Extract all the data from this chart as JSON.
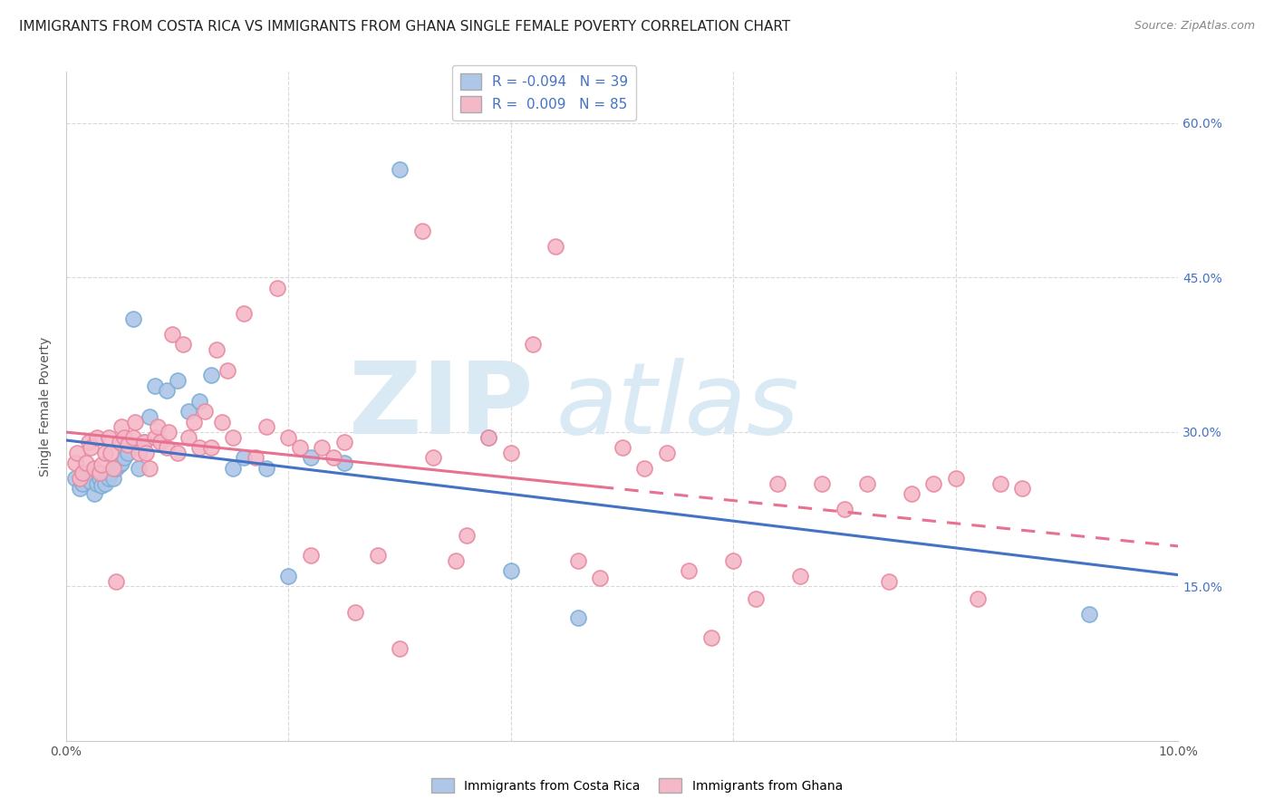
{
  "title": "IMMIGRANTS FROM COSTA RICA VS IMMIGRANTS FROM GHANA SINGLE FEMALE POVERTY CORRELATION CHART",
  "source": "Source: ZipAtlas.com",
  "ylabel": "Single Female Poverty",
  "legend_label1": "R = -0.094   N = 39",
  "legend_label2": "R =  0.009   N = 85",
  "legend_color1": "#aec6e8",
  "legend_color2": "#f4b8c8",
  "dot_color1": "#aec6e8",
  "dot_color2": "#f4b8c8",
  "dot_edge_color1": "#7bafd4",
  "dot_edge_color2": "#e88aa0",
  "line_color1": "#4472c4",
  "line_color2": "#e87090",
  "background_color": "#ffffff",
  "watermark_color": "#daeaf5",
  "grid_color": "#d8d8d8",
  "costa_rica_x": [
    0.0008,
    0.0012,
    0.0015,
    0.0018,
    0.0022,
    0.0025,
    0.0028,
    0.003,
    0.0032,
    0.0035,
    0.0038,
    0.004,
    0.0042,
    0.0045,
    0.0048,
    0.005,
    0.0052,
    0.0055,
    0.006,
    0.0065,
    0.007,
    0.0075,
    0.008,
    0.009,
    0.01,
    0.011,
    0.012,
    0.013,
    0.015,
    0.016,
    0.018,
    0.02,
    0.022,
    0.025,
    0.03,
    0.038,
    0.04,
    0.046,
    0.092
  ],
  "costa_rica_y": [
    0.255,
    0.245,
    0.25,
    0.26,
    0.252,
    0.24,
    0.25,
    0.255,
    0.248,
    0.25,
    0.255,
    0.26,
    0.255,
    0.265,
    0.268,
    0.27,
    0.275,
    0.28,
    0.41,
    0.265,
    0.29,
    0.315,
    0.345,
    0.34,
    0.35,
    0.32,
    0.33,
    0.355,
    0.265,
    0.275,
    0.265,
    0.16,
    0.275,
    0.27,
    0.555,
    0.295,
    0.165,
    0.12,
    0.123
  ],
  "ghana_x": [
    0.0008,
    0.001,
    0.0012,
    0.0015,
    0.0018,
    0.002,
    0.0022,
    0.0025,
    0.0028,
    0.003,
    0.0032,
    0.0035,
    0.0038,
    0.004,
    0.0042,
    0.0045,
    0.0048,
    0.005,
    0.0052,
    0.0055,
    0.006,
    0.0062,
    0.0065,
    0.007,
    0.0072,
    0.0075,
    0.008,
    0.0082,
    0.0085,
    0.009,
    0.0092,
    0.0095,
    0.01,
    0.0105,
    0.011,
    0.0115,
    0.012,
    0.0125,
    0.013,
    0.0135,
    0.014,
    0.0145,
    0.015,
    0.016,
    0.017,
    0.018,
    0.019,
    0.02,
    0.021,
    0.022,
    0.023,
    0.024,
    0.025,
    0.026,
    0.028,
    0.03,
    0.032,
    0.033,
    0.035,
    0.036,
    0.038,
    0.04,
    0.042,
    0.044,
    0.046,
    0.048,
    0.05,
    0.052,
    0.054,
    0.056,
    0.058,
    0.06,
    0.062,
    0.064,
    0.066,
    0.068,
    0.07,
    0.072,
    0.074,
    0.076,
    0.078,
    0.08,
    0.082,
    0.084,
    0.086
  ],
  "ghana_y": [
    0.27,
    0.28,
    0.255,
    0.26,
    0.27,
    0.29,
    0.285,
    0.265,
    0.295,
    0.26,
    0.268,
    0.28,
    0.295,
    0.28,
    0.265,
    0.155,
    0.29,
    0.305,
    0.295,
    0.288,
    0.295,
    0.31,
    0.28,
    0.29,
    0.28,
    0.265,
    0.295,
    0.305,
    0.29,
    0.285,
    0.3,
    0.395,
    0.28,
    0.385,
    0.295,
    0.31,
    0.285,
    0.32,
    0.285,
    0.38,
    0.31,
    0.36,
    0.295,
    0.415,
    0.275,
    0.305,
    0.44,
    0.295,
    0.285,
    0.18,
    0.285,
    0.275,
    0.29,
    0.125,
    0.18,
    0.09,
    0.495,
    0.275,
    0.175,
    0.2,
    0.295,
    0.28,
    0.385,
    0.48,
    0.175,
    0.158,
    0.285,
    0.265,
    0.28,
    0.165,
    0.1,
    0.175,
    0.138,
    0.25,
    0.16,
    0.25,
    0.225,
    0.25,
    0.155,
    0.24,
    0.25,
    0.255,
    0.138,
    0.25,
    0.245
  ],
  "xlim": [
    0.0,
    0.1
  ],
  "ylim": [
    0.0,
    0.65
  ],
  "x_ticks": [
    0.0,
    0.02,
    0.04,
    0.06,
    0.08,
    0.1
  ],
  "y_ticks": [
    0.15,
    0.3,
    0.45,
    0.6
  ],
  "title_fontsize": 11,
  "tick_fontsize": 10,
  "ylabel_fontsize": 10
}
